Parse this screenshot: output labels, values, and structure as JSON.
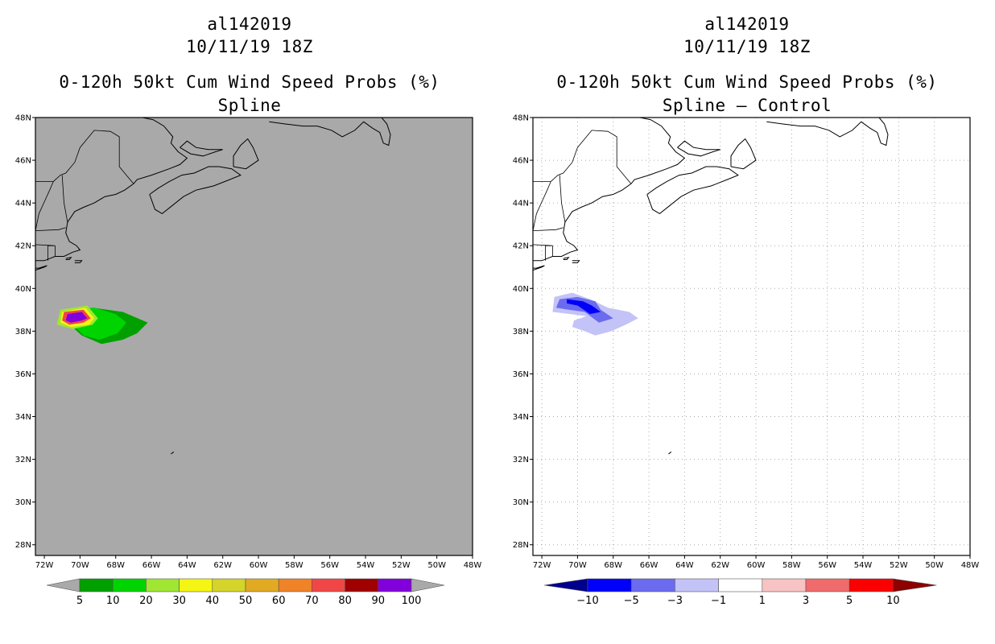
{
  "panels": [
    {
      "id": "left",
      "storm_id": "al142019",
      "datetime": "10/11/19 18Z",
      "product": "0-120h 50kt Cum Wind Speed Probs (%)",
      "subtitle": "Spline",
      "background": "#a9a9a9",
      "gridlines": false
    },
    {
      "id": "right",
      "storm_id": "al142019",
      "datetime": "10/11/19 18Z",
      "product": "0-120h 50kt Cum Wind Speed Probs (%)",
      "subtitle": "Spline – Control",
      "background": "#ffffff",
      "gridlines": true
    }
  ],
  "chart_data": [
    {
      "type": "heatmap",
      "title": "0-120h 50kt Cum Wind Speed Probs (%) - Spline",
      "x_ticks": [
        "72W",
        "70W",
        "68W",
        "66W",
        "64W",
        "62W",
        "60W",
        "58W",
        "56W",
        "54W",
        "52W",
        "50W",
        "48W"
      ],
      "y_ticks": [
        "48N",
        "46N",
        "44N",
        "42N",
        "40N",
        "38N",
        "36N",
        "34N",
        "32N",
        "30N",
        "28N"
      ],
      "xlim": [
        -72.5,
        -48
      ],
      "ylim": [
        27.5,
        48
      ],
      "colorbar": {
        "labels": [
          "5",
          "10",
          "20",
          "30",
          "40",
          "50",
          "60",
          "70",
          "80",
          "90",
          "100"
        ],
        "colors": [
          "#00a000",
          "#00d400",
          "#a0e632",
          "#f5f514",
          "#d4d42a",
          "#e1aa22",
          "#f08228",
          "#f04646",
          "#a00000",
          "#8200dc"
        ],
        "under_color": "#a9a9a9",
        "over_color": "#a9a9a9"
      },
      "contours": [
        {
          "level": 5,
          "color": "#00a000",
          "polygon": [
            [
              -70.6,
              38.9
            ],
            [
              -69.3,
              39.1
            ],
            [
              -67.6,
              38.9
            ],
            [
              -66.2,
              38.4
            ],
            [
              -66.8,
              37.9
            ],
            [
              -67.6,
              37.6
            ],
            [
              -68.8,
              37.4
            ],
            [
              -69.9,
              37.8
            ],
            [
              -70.7,
              38.4
            ]
          ]
        },
        {
          "level": 10,
          "color": "#00d400",
          "polygon": [
            [
              -70.4,
              39.0
            ],
            [
              -69.2,
              39.1
            ],
            [
              -68.0,
              38.8
            ],
            [
              -67.4,
              38.4
            ],
            [
              -67.9,
              37.9
            ],
            [
              -68.9,
              37.6
            ],
            [
              -69.8,
              37.8
            ],
            [
              -70.5,
              38.4
            ]
          ]
        },
        {
          "level": 20,
          "color": "#a0e632",
          "polygon": [
            [
              -71.1,
              39.0
            ],
            [
              -69.6,
              39.2
            ],
            [
              -69.0,
              38.6
            ],
            [
              -69.3,
              38.3
            ],
            [
              -70.4,
              38.1
            ],
            [
              -71.3,
              38.3
            ]
          ]
        },
        {
          "level": 30,
          "color": "#f5f514",
          "polygon": [
            [
              -71.0,
              38.9
            ],
            [
              -69.7,
              39.1
            ],
            [
              -69.2,
              38.6
            ],
            [
              -69.5,
              38.3
            ],
            [
              -70.5,
              38.2
            ],
            [
              -71.1,
              38.4
            ]
          ]
        },
        {
          "level": 80,
          "color": "#f04646",
          "polygon": [
            [
              -70.9,
              38.9
            ],
            [
              -69.8,
              39.0
            ],
            [
              -69.4,
              38.6
            ],
            [
              -69.8,
              38.4
            ],
            [
              -70.6,
              38.3
            ],
            [
              -71.0,
              38.5
            ]
          ]
        },
        {
          "level": 90,
          "color": "#8200dc",
          "polygon": [
            [
              -70.7,
              38.8
            ],
            [
              -69.9,
              38.9
            ],
            [
              -69.6,
              38.6
            ],
            [
              -69.9,
              38.5
            ],
            [
              -70.5,
              38.4
            ],
            [
              -70.8,
              38.5
            ]
          ]
        }
      ]
    },
    {
      "type": "heatmap",
      "title": "0-120h 50kt Cum Wind Speed Probs (%) - Spline – Control",
      "x_ticks": [
        "72W",
        "70W",
        "68W",
        "66W",
        "64W",
        "62W",
        "60W",
        "58W",
        "56W",
        "54W",
        "52W",
        "50W",
        "48W"
      ],
      "y_ticks": [
        "48N",
        "46N",
        "44N",
        "42N",
        "40N",
        "38N",
        "36N",
        "34N",
        "32N",
        "30N",
        "28N"
      ],
      "xlim": [
        -72.5,
        -48
      ],
      "ylim": [
        27.5,
        48
      ],
      "colorbar": {
        "labels": [
          "−10",
          "−5",
          "−3",
          "−1",
          "1",
          "3",
          "5",
          "10"
        ],
        "colors": [
          "#0000fa",
          "#6b6bf0",
          "#c3c3f7",
          "#ffffff",
          "#f7c3c3",
          "#f06b6b",
          "#fa0000"
        ],
        "under_color": "#00008c",
        "over_color": "#8c0000"
      },
      "contours": [
        {
          "level": -1,
          "color": "#c3c3f7",
          "polygon": [
            [
              -71.3,
              39.6
            ],
            [
              -70.3,
              39.8
            ],
            [
              -69.3,
              39.5
            ],
            [
              -68.3,
              39.1
            ],
            [
              -67.1,
              38.9
            ],
            [
              -66.6,
              38.6
            ],
            [
              -67.3,
              38.3
            ],
            [
              -68.1,
              38.0
            ],
            [
              -69.0,
              37.8
            ],
            [
              -69.6,
              38.0
            ],
            [
              -70.3,
              38.2
            ],
            [
              -70.2,
              38.5
            ],
            [
              -69.5,
              38.7
            ],
            [
              -70.4,
              38.8
            ],
            [
              -71.4,
              38.9
            ]
          ]
        },
        {
          "level": -3,
          "color": "#6b6bf0",
          "polygon": [
            [
              -71.0,
              39.5
            ],
            [
              -70.0,
              39.6
            ],
            [
              -69.0,
              39.4
            ],
            [
              -68.7,
              39.0
            ],
            [
              -68.0,
              38.6
            ],
            [
              -68.8,
              38.4
            ],
            [
              -69.6,
              38.9
            ],
            [
              -70.5,
              39.0
            ],
            [
              -71.2,
              39.1
            ]
          ]
        },
        {
          "level": -5,
          "color": "#0000fa",
          "polygon": [
            [
              -70.6,
              39.5
            ],
            [
              -69.7,
              39.4
            ],
            [
              -69.2,
              39.2
            ],
            [
              -68.7,
              38.9
            ],
            [
              -69.3,
              38.8
            ],
            [
              -70.0,
              39.2
            ],
            [
              -70.6,
              39.3
            ]
          ]
        }
      ]
    }
  ]
}
